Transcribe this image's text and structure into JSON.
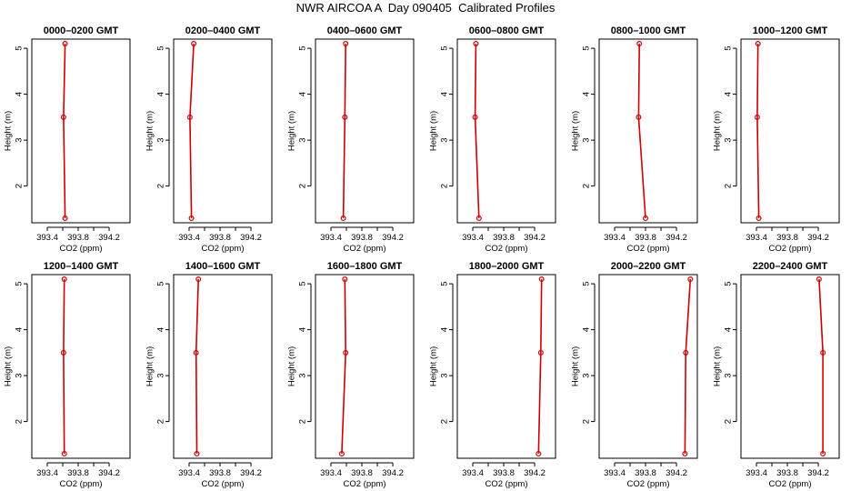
{
  "title": "NWR AIRCOA A  Day 090405  Calibrated Profiles",
  "colors": {
    "line": "#cc0000",
    "points": "#cc0000",
    "frame": "#000000"
  },
  "chart_data": [
    {
      "type": "line",
      "title": "0000–0200 GMT",
      "xlabel": "CO2 (ppm)",
      "ylabel": "Height (m)",
      "xlim": [
        393.2,
        394.47
      ],
      "ylim": [
        1.2,
        5.2
      ],
      "xticks": [
        "393.4",
        "393.6",
        "393.8",
        "394.0",
        "394.2"
      ],
      "xtick_labels": [
        "393.4",
        "",
        "393.8",
        "",
        "394.2"
      ],
      "yticks": [
        "2",
        "3",
        "4",
        "5"
      ],
      "series": [
        {
          "x": [
            393.63,
            393.61,
            393.63
          ],
          "y": [
            1.3,
            3.5,
            5.1
          ]
        }
      ]
    },
    {
      "type": "line",
      "title": "0200–0400 GMT",
      "xlabel": "CO2 (ppm)",
      "ylabel": "Height (m)",
      "xlim": [
        393.2,
        394.47
      ],
      "ylim": [
        1.2,
        5.2
      ],
      "xticks": [
        "393.4",
        "393.6",
        "393.8",
        "394.0",
        "394.2"
      ],
      "xtick_labels": [
        "393.4",
        "",
        "393.8",
        "",
        "394.2"
      ],
      "yticks": [
        "2",
        "3",
        "4",
        "5"
      ],
      "series": [
        {
          "x": [
            393.43,
            393.41,
            393.46
          ],
          "y": [
            1.3,
            3.5,
            5.1
          ]
        }
      ]
    },
    {
      "type": "line",
      "title": "0400–0600 GMT",
      "xlabel": "CO2 (ppm)",
      "ylabel": "Height (m)",
      "xlim": [
        393.2,
        394.47
      ],
      "ylim": [
        1.2,
        5.2
      ],
      "xticks": [
        "393.4",
        "393.6",
        "393.8",
        "394.0",
        "394.2"
      ],
      "xtick_labels": [
        "393.4",
        "",
        "393.8",
        "",
        "394.2"
      ],
      "yticks": [
        "2",
        "3",
        "4",
        "5"
      ],
      "series": [
        {
          "x": [
            393.56,
            393.58,
            393.59
          ],
          "y": [
            1.3,
            3.5,
            5.1
          ]
        }
      ]
    },
    {
      "type": "line",
      "title": "0600–0800 GMT",
      "xlabel": "CO2 (ppm)",
      "ylabel": "Height (m)",
      "xlim": [
        393.2,
        394.47
      ],
      "ylim": [
        1.2,
        5.2
      ],
      "xticks": [
        "393.4",
        "393.6",
        "393.8",
        "394.0",
        "394.2"
      ],
      "xtick_labels": [
        "393.4",
        "",
        "393.8",
        "",
        "394.2"
      ],
      "yticks": [
        "2",
        "3",
        "4",
        "5"
      ],
      "series": [
        {
          "x": [
            393.48,
            393.43,
            393.44
          ],
          "y": [
            1.3,
            3.5,
            5.1
          ]
        }
      ]
    },
    {
      "type": "line",
      "title": "0800–1000 GMT",
      "xlabel": "CO2 (ppm)",
      "ylabel": "Height (m)",
      "xlim": [
        393.2,
        394.47
      ],
      "ylim": [
        1.2,
        5.2
      ],
      "xticks": [
        "393.4",
        "393.6",
        "393.8",
        "394.0",
        "394.2"
      ],
      "xtick_labels": [
        "393.4",
        "",
        "393.8",
        "",
        "394.2"
      ],
      "yticks": [
        "2",
        "3",
        "4",
        "5"
      ],
      "series": [
        {
          "x": [
            393.8,
            393.71,
            393.72
          ],
          "y": [
            1.3,
            3.5,
            5.1
          ]
        }
      ]
    },
    {
      "type": "line",
      "title": "1000–1200 GMT",
      "xlabel": "CO2 (ppm)",
      "ylabel": "Height (m)",
      "xlim": [
        393.2,
        394.47
      ],
      "ylim": [
        1.2,
        5.2
      ],
      "xticks": [
        "393.4",
        "393.6",
        "393.8",
        "394.0",
        "394.2"
      ],
      "xtick_labels": [
        "393.4",
        "",
        "393.8",
        "",
        "394.2"
      ],
      "yticks": [
        "2",
        "3",
        "4",
        "5"
      ],
      "series": [
        {
          "x": [
            393.43,
            393.41,
            393.42
          ],
          "y": [
            1.3,
            3.5,
            5.1
          ]
        }
      ]
    },
    {
      "type": "line",
      "title": "1200–1400 GMT",
      "xlabel": "CO2 (ppm)",
      "ylabel": "Height (m)",
      "xlim": [
        393.2,
        394.47
      ],
      "ylim": [
        1.2,
        5.2
      ],
      "xticks": [
        "393.4",
        "393.6",
        "393.8",
        "394.0",
        "394.2"
      ],
      "xtick_labels": [
        "393.4",
        "",
        "393.8",
        "",
        "394.2"
      ],
      "yticks": [
        "2",
        "3",
        "4",
        "5"
      ],
      "series": [
        {
          "x": [
            393.62,
            393.61,
            393.62
          ],
          "y": [
            1.3,
            3.5,
            5.1
          ]
        }
      ]
    },
    {
      "type": "line",
      "title": "1400–1600 GMT",
      "xlabel": "CO2 (ppm)",
      "ylabel": "Height (m)",
      "xlim": [
        393.2,
        394.47
      ],
      "ylim": [
        1.2,
        5.2
      ],
      "xticks": [
        "393.4",
        "393.6",
        "393.8",
        "394.0",
        "394.2"
      ],
      "xtick_labels": [
        "393.4",
        "",
        "393.8",
        "",
        "394.2"
      ],
      "yticks": [
        "2",
        "3",
        "4",
        "5"
      ],
      "series": [
        {
          "x": [
            393.5,
            393.49,
            393.52
          ],
          "y": [
            1.3,
            3.5,
            5.1
          ]
        }
      ]
    },
    {
      "type": "line",
      "title": "1600–1800 GMT",
      "xlabel": "CO2 (ppm)",
      "ylabel": "Height (m)",
      "xlim": [
        393.2,
        394.47
      ],
      "ylim": [
        1.2,
        5.2
      ],
      "xticks": [
        "393.4",
        "393.6",
        "393.8",
        "394.0",
        "394.2"
      ],
      "xtick_labels": [
        "393.4",
        "",
        "393.8",
        "",
        "394.2"
      ],
      "yticks": [
        "2",
        "3",
        "4",
        "5"
      ],
      "series": [
        {
          "x": [
            393.54,
            393.59,
            393.58
          ],
          "y": [
            1.3,
            3.5,
            5.1
          ]
        }
      ]
    },
    {
      "type": "line",
      "title": "1800–2000 GMT",
      "xlabel": "CO2 (ppm)",
      "ylabel": "Height (m)",
      "xlim": [
        393.2,
        394.47
      ],
      "ylim": [
        1.2,
        5.2
      ],
      "xticks": [
        "393.4",
        "393.6",
        "393.8",
        "394.0",
        "394.2"
      ],
      "xtick_labels": [
        "393.4",
        "",
        "393.8",
        "",
        "394.2"
      ],
      "yticks": [
        "2",
        "3",
        "4",
        "5"
      ],
      "series": [
        {
          "x": [
            394.25,
            394.28,
            394.29
          ],
          "y": [
            1.3,
            3.5,
            5.1
          ]
        }
      ]
    },
    {
      "type": "line",
      "title": "2000–2200 GMT",
      "xlabel": "CO2 (ppm)",
      "ylabel": "Height (m)",
      "xlim": [
        393.2,
        394.47
      ],
      "ylim": [
        1.2,
        5.2
      ],
      "xticks": [
        "393.4",
        "393.6",
        "393.8",
        "394.0",
        "394.2"
      ],
      "xtick_labels": [
        "393.4",
        "",
        "393.8",
        "",
        "394.2"
      ],
      "yticks": [
        "2",
        "3",
        "4",
        "5"
      ],
      "series": [
        {
          "x": [
            394.31,
            394.32,
            394.38
          ],
          "y": [
            1.3,
            3.5,
            5.1
          ]
        }
      ]
    },
    {
      "type": "line",
      "title": "2200–2400 GMT",
      "xlabel": "CO2 (ppm)",
      "ylabel": "Height (m)",
      "xlim": [
        393.2,
        394.47
      ],
      "ylim": [
        1.2,
        5.2
      ],
      "xticks": [
        "393.4",
        "393.6",
        "393.8",
        "394.0",
        "394.2"
      ],
      "xtick_labels": [
        "393.4",
        "",
        "393.8",
        "",
        "394.2"
      ],
      "yticks": [
        "2",
        "3",
        "4",
        "5"
      ],
      "series": [
        {
          "x": [
            394.26,
            394.26,
            394.21
          ],
          "y": [
            1.3,
            3.5,
            5.1
          ]
        }
      ]
    }
  ]
}
